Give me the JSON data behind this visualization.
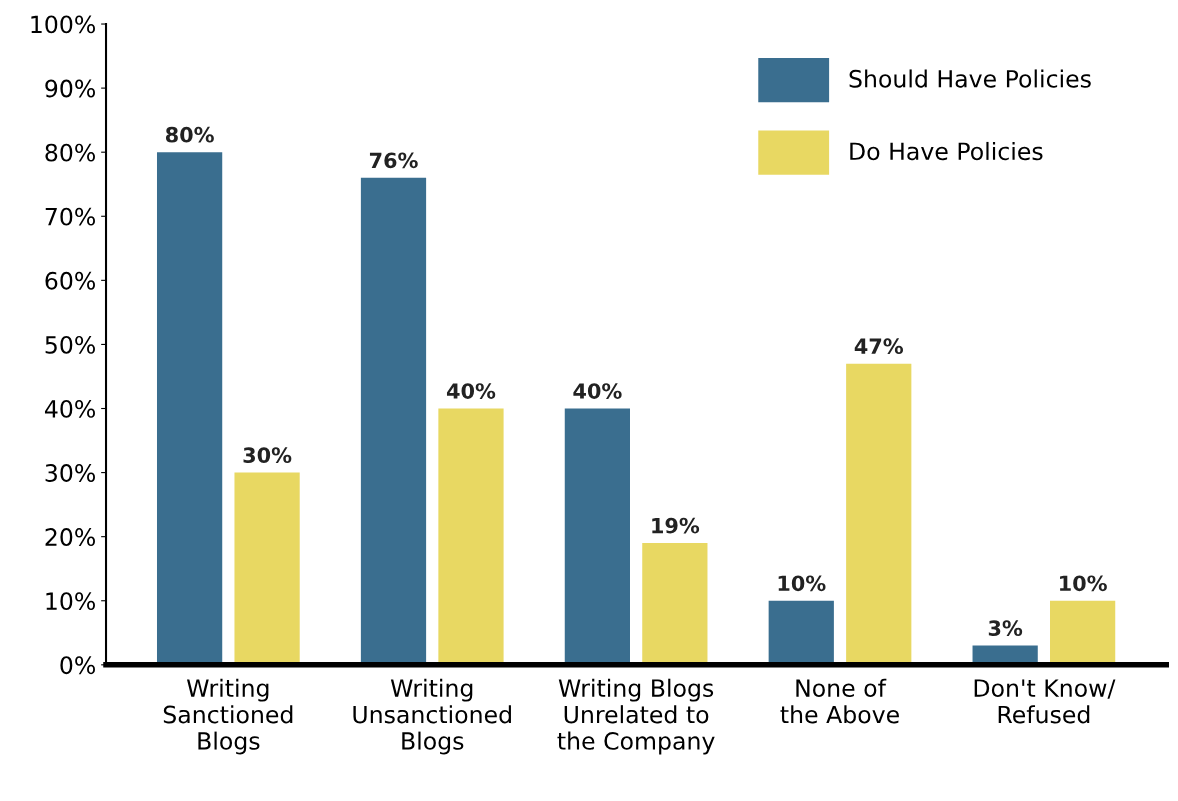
{
  "chart_data": {
    "type": "bar",
    "categories": [
      "Writing\nSanctioned\nBlogs",
      "Writing\nUnsanctioned\nBlogs",
      "Writing Blogs\nUnrelated to\nthe Company",
      "None of\nthe Above",
      "Don't Know/\nRefused"
    ],
    "series": [
      {
        "name": "Should Have Policies",
        "color": "#3a6e8f",
        "values": [
          80,
          76,
          40,
          10,
          3
        ]
      },
      {
        "name": "Do Have Policies",
        "color": "#e8d862",
        "values": [
          30,
          40,
          19,
          47,
          10
        ]
      }
    ],
    "ylim": [
      0,
      100
    ],
    "yticks": [
      {
        "value": 0,
        "label": "0%"
      },
      {
        "value": 10,
        "label": "10%"
      },
      {
        "value": 20,
        "label": "20%"
      },
      {
        "value": 30,
        "label": "30%"
      },
      {
        "value": 40,
        "label": "40%"
      },
      {
        "value": 50,
        "label": "50%"
      },
      {
        "value": 60,
        "label": "60%"
      },
      {
        "value": 70,
        "label": "70%"
      },
      {
        "value": 80,
        "label": "80%"
      },
      {
        "value": 90,
        "label": "90%"
      },
      {
        "value": 100,
        "label": "100%"
      }
    ],
    "value_labels": [
      [
        "80%",
        "76%",
        "40%",
        "10%",
        "3%"
      ],
      [
        "30%",
        "40%",
        "19%",
        "47%",
        "10%"
      ]
    ],
    "grid": false,
    "legend": "top right"
  }
}
